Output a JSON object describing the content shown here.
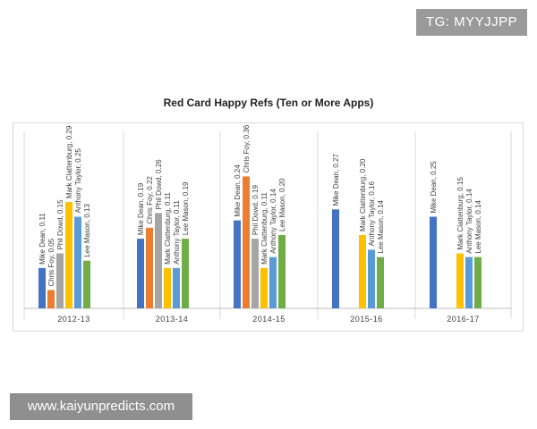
{
  "watermarks": {
    "top": "TG: MYYJJPP",
    "bottom": "www.kaiyunpredicts.com"
  },
  "chart_data": {
    "type": "bar",
    "title": "Red Card Happy Refs (Ten or More Apps)",
    "xlabel": "",
    "ylabel": "",
    "ylim": [
      0,
      0.4
    ],
    "grid": false,
    "legend": "none",
    "categories": [
      "2012-13",
      "2013-14",
      "2014-15",
      "2015-16",
      "2016-17"
    ],
    "series": [
      {
        "name": "Mike Dean",
        "color": "#4472c4",
        "values": [
          0.11,
          0.19,
          0.24,
          0.27,
          0.25
        ]
      },
      {
        "name": "Chris Foy",
        "color": "#ed7d31",
        "values": [
          0.05,
          0.22,
          0.36,
          null,
          null
        ]
      },
      {
        "name": "Phil Dowd",
        "color": "#a5a5a5",
        "values": [
          0.15,
          0.26,
          0.19,
          null,
          null
        ]
      },
      {
        "name": "Mark Clattenburg",
        "color": "#ffc000",
        "values": [
          0.29,
          0.11,
          0.11,
          0.2,
          0.15
        ]
      },
      {
        "name": "Anthony Taylor",
        "color": "#5b9bd5",
        "values": [
          0.25,
          0.11,
          0.14,
          0.16,
          0.14
        ]
      },
      {
        "name": "Lee Mason",
        "color": "#70ad47",
        "values": [
          0.13,
          0.19,
          0.2,
          0.14,
          0.14
        ]
      }
    ],
    "data_labels": [
      [
        "Mike Dean, 0.11",
        "Chris Foy, 0.05",
        "Phil Dowd, 0.15",
        "Mark Clattenburg, 0.29",
        "Anthony Taylor, 0.25",
        "Lee Mason, 0.13"
      ],
      [
        "Mike Dean, 0.19",
        "Chris Foy, 0.22",
        "Phil Dowd, 0.26",
        "Mark Clattenburg, 0.11",
        "Anthony Taylor, 0.11",
        "Lee Mason, 0.19"
      ],
      [
        "Mike Dean, 0.24",
        "Chris Foy, 0.36",
        "Phil Dowd, 0.19",
        "Mark Clattenburg, 0.11",
        "Anthony Taylor, 0.14",
        "Lee Mason, 0.20"
      ],
      [
        "Mike Dean, 0.27",
        null,
        null,
        "Mark Clattenburg, 0.20",
        "Anthony Taylor, 0.16",
        "Lee Mason, 0.14"
      ],
      [
        "Mike Dean, 0.25",
        null,
        null,
        "Mark Clattenburg, 0.15",
        "Anthony Taylor, 0.14",
        "Lee Mason, 0.14"
      ]
    ]
  }
}
